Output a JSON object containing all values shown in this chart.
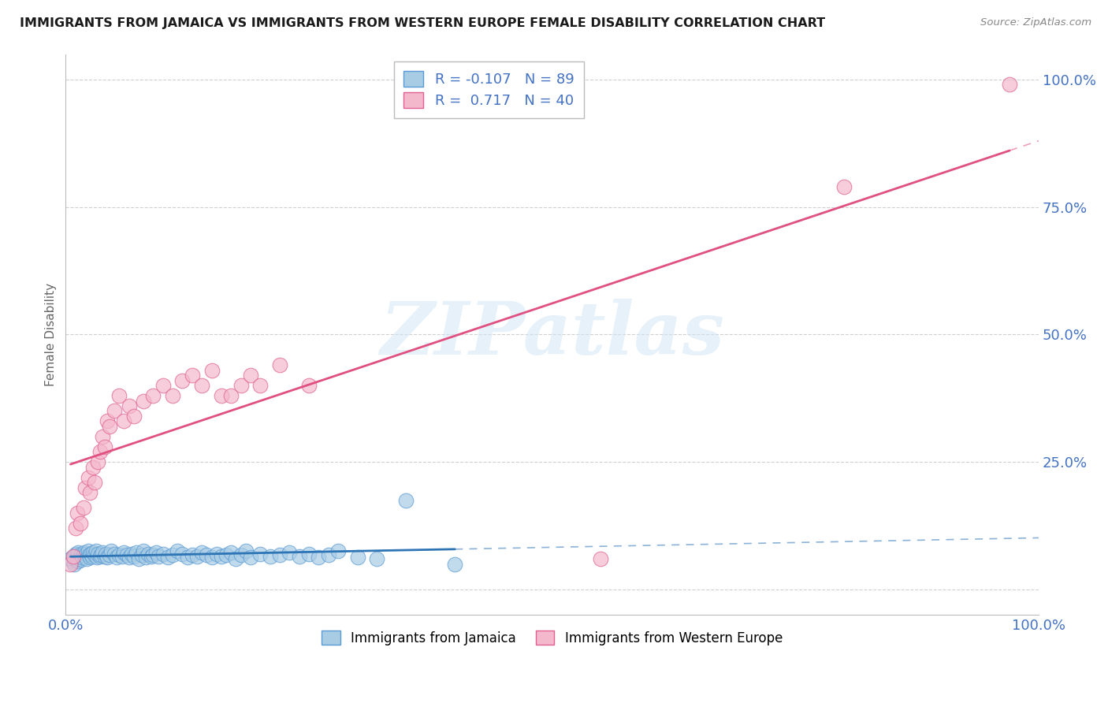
{
  "title": "IMMIGRANTS FROM JAMAICA VS IMMIGRANTS FROM WESTERN EUROPE FEMALE DISABILITY CORRELATION CHART",
  "source": "Source: ZipAtlas.com",
  "ylabel": "Female Disability",
  "xlim": [
    0.0,
    1.0
  ],
  "ylim": [
    -0.05,
    1.05
  ],
  "yticks": [
    0.0,
    0.25,
    0.5,
    0.75,
    1.0
  ],
  "blue_color": "#a8cce4",
  "pink_color": "#f4b8cc",
  "blue_edge_color": "#5b9bd5",
  "pink_edge_color": "#e06090",
  "blue_line_color": "#2e75b6",
  "pink_line_color": "#e05080",
  "R_blue": -0.107,
  "N_blue": 89,
  "R_pink": 0.717,
  "N_pink": 40,
  "watermark_text": "ZIPatlas",
  "background_color": "#ffffff",
  "grid_color": "#d0d0d0",
  "title_color": "#1a1a1a",
  "axis_label_color": "#4472c4",
  "ylabel_color": "#666666",
  "legend_text_color": "#4472c4",
  "blue_x": [
    0.005,
    0.007,
    0.008,
    0.009,
    0.01,
    0.01,
    0.011,
    0.012,
    0.013,
    0.013,
    0.014,
    0.015,
    0.016,
    0.016,
    0.017,
    0.018,
    0.019,
    0.02,
    0.021,
    0.022,
    0.023,
    0.024,
    0.025,
    0.026,
    0.027,
    0.028,
    0.03,
    0.031,
    0.032,
    0.033,
    0.035,
    0.036,
    0.038,
    0.04,
    0.041,
    0.043,
    0.045,
    0.047,
    0.05,
    0.052,
    0.055,
    0.058,
    0.06,
    0.063,
    0.065,
    0.068,
    0.07,
    0.073,
    0.075,
    0.078,
    0.08,
    0.082,
    0.085,
    0.088,
    0.09,
    0.093,
    0.095,
    0.1,
    0.105,
    0.11,
    0.115,
    0.12,
    0.125,
    0.13,
    0.135,
    0.14,
    0.145,
    0.15,
    0.155,
    0.16,
    0.165,
    0.17,
    0.175,
    0.18,
    0.185,
    0.19,
    0.2,
    0.21,
    0.22,
    0.23,
    0.24,
    0.25,
    0.26,
    0.27,
    0.28,
    0.3,
    0.32,
    0.35,
    0.4
  ],
  "blue_y": [
    0.06,
    0.055,
    0.065,
    0.05,
    0.07,
    0.058,
    0.062,
    0.068,
    0.055,
    0.072,
    0.06,
    0.065,
    0.07,
    0.058,
    0.063,
    0.068,
    0.072,
    0.065,
    0.07,
    0.06,
    0.075,
    0.068,
    0.063,
    0.07,
    0.065,
    0.072,
    0.068,
    0.075,
    0.063,
    0.07,
    0.065,
    0.068,
    0.072,
    0.065,
    0.07,
    0.063,
    0.068,
    0.075,
    0.07,
    0.063,
    0.068,
    0.065,
    0.072,
    0.068,
    0.063,
    0.07,
    0.065,
    0.072,
    0.06,
    0.068,
    0.075,
    0.063,
    0.07,
    0.065,
    0.068,
    0.072,
    0.065,
    0.07,
    0.063,
    0.068,
    0.075,
    0.07,
    0.063,
    0.068,
    0.065,
    0.072,
    0.068,
    0.063,
    0.07,
    0.065,
    0.068,
    0.072,
    0.06,
    0.068,
    0.075,
    0.063,
    0.07,
    0.065,
    0.068,
    0.072,
    0.065,
    0.07,
    0.063,
    0.068,
    0.075,
    0.063,
    0.06,
    0.175,
    0.05
  ],
  "pink_x": [
    0.005,
    0.008,
    0.01,
    0.012,
    0.015,
    0.018,
    0.02,
    0.023,
    0.025,
    0.028,
    0.03,
    0.033,
    0.035,
    0.038,
    0.04,
    0.043,
    0.045,
    0.05,
    0.055,
    0.06,
    0.065,
    0.07,
    0.08,
    0.09,
    0.1,
    0.11,
    0.12,
    0.13,
    0.14,
    0.15,
    0.16,
    0.17,
    0.18,
    0.19,
    0.2,
    0.22,
    0.25,
    0.55,
    0.8,
    0.97
  ],
  "pink_y": [
    0.05,
    0.065,
    0.12,
    0.15,
    0.13,
    0.16,
    0.2,
    0.22,
    0.19,
    0.24,
    0.21,
    0.25,
    0.27,
    0.3,
    0.28,
    0.33,
    0.32,
    0.35,
    0.38,
    0.33,
    0.36,
    0.34,
    0.37,
    0.38,
    0.4,
    0.38,
    0.41,
    0.42,
    0.4,
    0.43,
    0.38,
    0.38,
    0.4,
    0.42,
    0.4,
    0.44,
    0.4,
    0.06,
    0.79,
    0.99
  ]
}
